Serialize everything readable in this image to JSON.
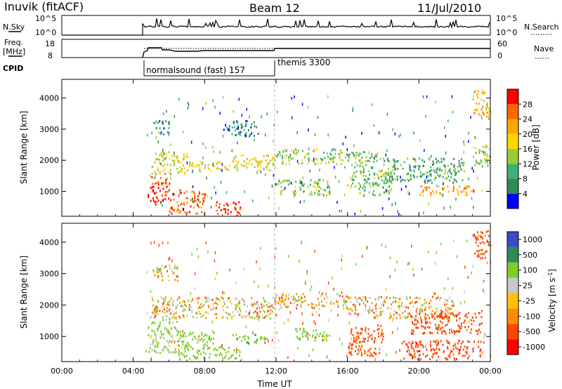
{
  "header": {
    "site": "Inuvik (fitACF)",
    "beam": "Beam 12",
    "date": "11/Jul/2010"
  },
  "panels": {
    "nsky": {
      "label": "N.Sky",
      "ticks_left": [
        "10^5",
        "10^0"
      ],
      "ticks_right": [
        "10^5",
        "10^0"
      ],
      "right_label": "N.Search"
    },
    "freq": {
      "label_1": "Freq.",
      "label_2": "[MHz]",
      "ticks_left": [
        "18",
        "8"
      ],
      "ticks_right": [
        "60",
        "0"
      ],
      "right_label": "Nave"
    },
    "cpid": {
      "label": "CPID",
      "segments": [
        "normalsound (fast) 157",
        "themis 3300"
      ]
    }
  },
  "colors": {
    "power": [
      "#0000ff",
      "#2e8b57",
      "#3cb371",
      "#9acd32",
      "#ffd700",
      "#ffa500",
      "#ff6600",
      "#ff0000"
    ],
    "velocity": [
      "#ff0000",
      "#ff4500",
      "#ff8c00",
      "#ffc200",
      "#c8c8c8",
      "#7ccd28",
      "#2e8b57",
      "#3a4bc8"
    ],
    "ground_scatter": "#b3b3b3"
  },
  "chart_data": [
    {
      "type": "heatmap",
      "name": "power",
      "xlabel": "",
      "ylabel": "Slant Range [km]",
      "x_ticks": [
        "00:00",
        "04:00",
        "08:00",
        "12:00",
        "16:00",
        "20:00",
        "00:00"
      ],
      "y_ticks": [
        1000,
        2000,
        3000,
        4000
      ],
      "ylim": [
        200,
        4600
      ],
      "xlim_hours": [
        0,
        24
      ],
      "colorbar": {
        "label": "Power [dB]",
        "ticks": [
          4,
          8,
          12,
          16,
          20,
          24,
          28
        ],
        "range": [
          0,
          32
        ]
      },
      "regions": [
        {
          "t": [
            4.8,
            6.0
          ],
          "r": [
            600,
            1600
          ],
          "value": 28
        },
        {
          "t": [
            6.0,
            8.0
          ],
          "r": [
            300,
            1100
          ],
          "value": 26
        },
        {
          "t": [
            8.6,
            10.0
          ],
          "r": [
            250,
            700
          ],
          "value": 29
        },
        {
          "t": [
            5.0,
            7.0
          ],
          "r": [
            1600,
            2300
          ],
          "value": 16
        },
        {
          "t": [
            7.0,
            9.5
          ],
          "r": [
            1700,
            2000
          ],
          "value": 18
        },
        {
          "t": [
            9.5,
            12.0
          ],
          "r": [
            1700,
            2200
          ],
          "value": 17
        },
        {
          "t": [
            12.0,
            15.8
          ],
          "r": [
            1900,
            2400
          ],
          "value": 14
        },
        {
          "t": [
            15.8,
            18.0
          ],
          "r": [
            1800,
            2300
          ],
          "value": 12
        },
        {
          "t": [
            18.0,
            22.5
          ],
          "r": [
            1700,
            2100
          ],
          "value": 9
        },
        {
          "t": [
            18.0,
            22.5
          ],
          "r": [
            1300,
            1700
          ],
          "value": 10
        },
        {
          "t": [
            20.0,
            23.5
          ],
          "r": [
            900,
            1200
          ],
          "value": 22
        },
        {
          "t": [
            12.0,
            15.0
          ],
          "r": [
            900,
            1400
          ],
          "value": 13
        },
        {
          "t": [
            16.0,
            18.5
          ],
          "r": [
            900,
            1700
          ],
          "value": 12
        },
        {
          "t": [
            5.0,
            6.0
          ],
          "r": [
            2800,
            3300
          ],
          "value": 8
        },
        {
          "t": [
            9.0,
            11.0
          ],
          "r": [
            2800,
            3300
          ],
          "value": 6
        },
        {
          "t": [
            23.0,
            24.0
          ],
          "r": [
            1800,
            2500
          ],
          "value": 14
        },
        {
          "t": [
            23.0,
            24.0
          ],
          "r": [
            3400,
            4300
          ],
          "value": 20
        }
      ]
    },
    {
      "type": "heatmap",
      "name": "velocity",
      "xlabel": "Time UT",
      "ylabel": "Slant Range [km]",
      "x_ticks": [
        "00:00",
        "04:00",
        "08:00",
        "12:00",
        "16:00",
        "20:00",
        "00:00"
      ],
      "y_ticks": [
        1000,
        2000,
        3000,
        4000
      ],
      "ylim": [
        200,
        4600
      ],
      "xlim_hours": [
        0,
        24
      ],
      "colorbar": {
        "label": "Velocity [m s^-1]",
        "ticks": [
          -1000,
          -500,
          -100,
          -25,
          25,
          100,
          500,
          1000
        ]
      },
      "regions": [
        {
          "t": [
            4.8,
            6.5
          ],
          "r": [
            500,
            1700
          ],
          "value": 150
        },
        {
          "t": [
            6.5,
            8.5
          ],
          "r": [
            300,
            1200
          ],
          "value": 300
        },
        {
          "t": [
            8.5,
            10.0
          ],
          "r": [
            300,
            700
          ],
          "value": 300
        },
        {
          "t": [
            5.0,
            12.0
          ],
          "r": [
            1600,
            2300
          ],
          "value": 0
        },
        {
          "t": [
            12.0,
            16.0
          ],
          "r": [
            1900,
            2400
          ],
          "value": 0
        },
        {
          "t": [
            16.0,
            22.0
          ],
          "r": [
            1600,
            2300
          ],
          "value": 0
        },
        {
          "t": [
            9.5,
            11.5
          ],
          "r": [
            800,
            1100
          ],
          "value": 400
        },
        {
          "t": [
            13.0,
            15.0
          ],
          "r": [
            900,
            1300
          ],
          "value": 300
        },
        {
          "t": [
            16.0,
            18.0
          ],
          "r": [
            400,
            1400
          ],
          "value": -200
        },
        {
          "t": [
            19.5,
            23.5
          ],
          "r": [
            1100,
            1800
          ],
          "value": -300
        },
        {
          "t": [
            19.0,
            23.5
          ],
          "r": [
            300,
            900
          ],
          "value": -400
        },
        {
          "t": [
            23.0,
            24.0
          ],
          "r": [
            3500,
            4400
          ],
          "value": -200
        },
        {
          "t": [
            5.0,
            6.5
          ],
          "r": [
            2800,
            3300
          ],
          "value": 0
        }
      ]
    }
  ]
}
